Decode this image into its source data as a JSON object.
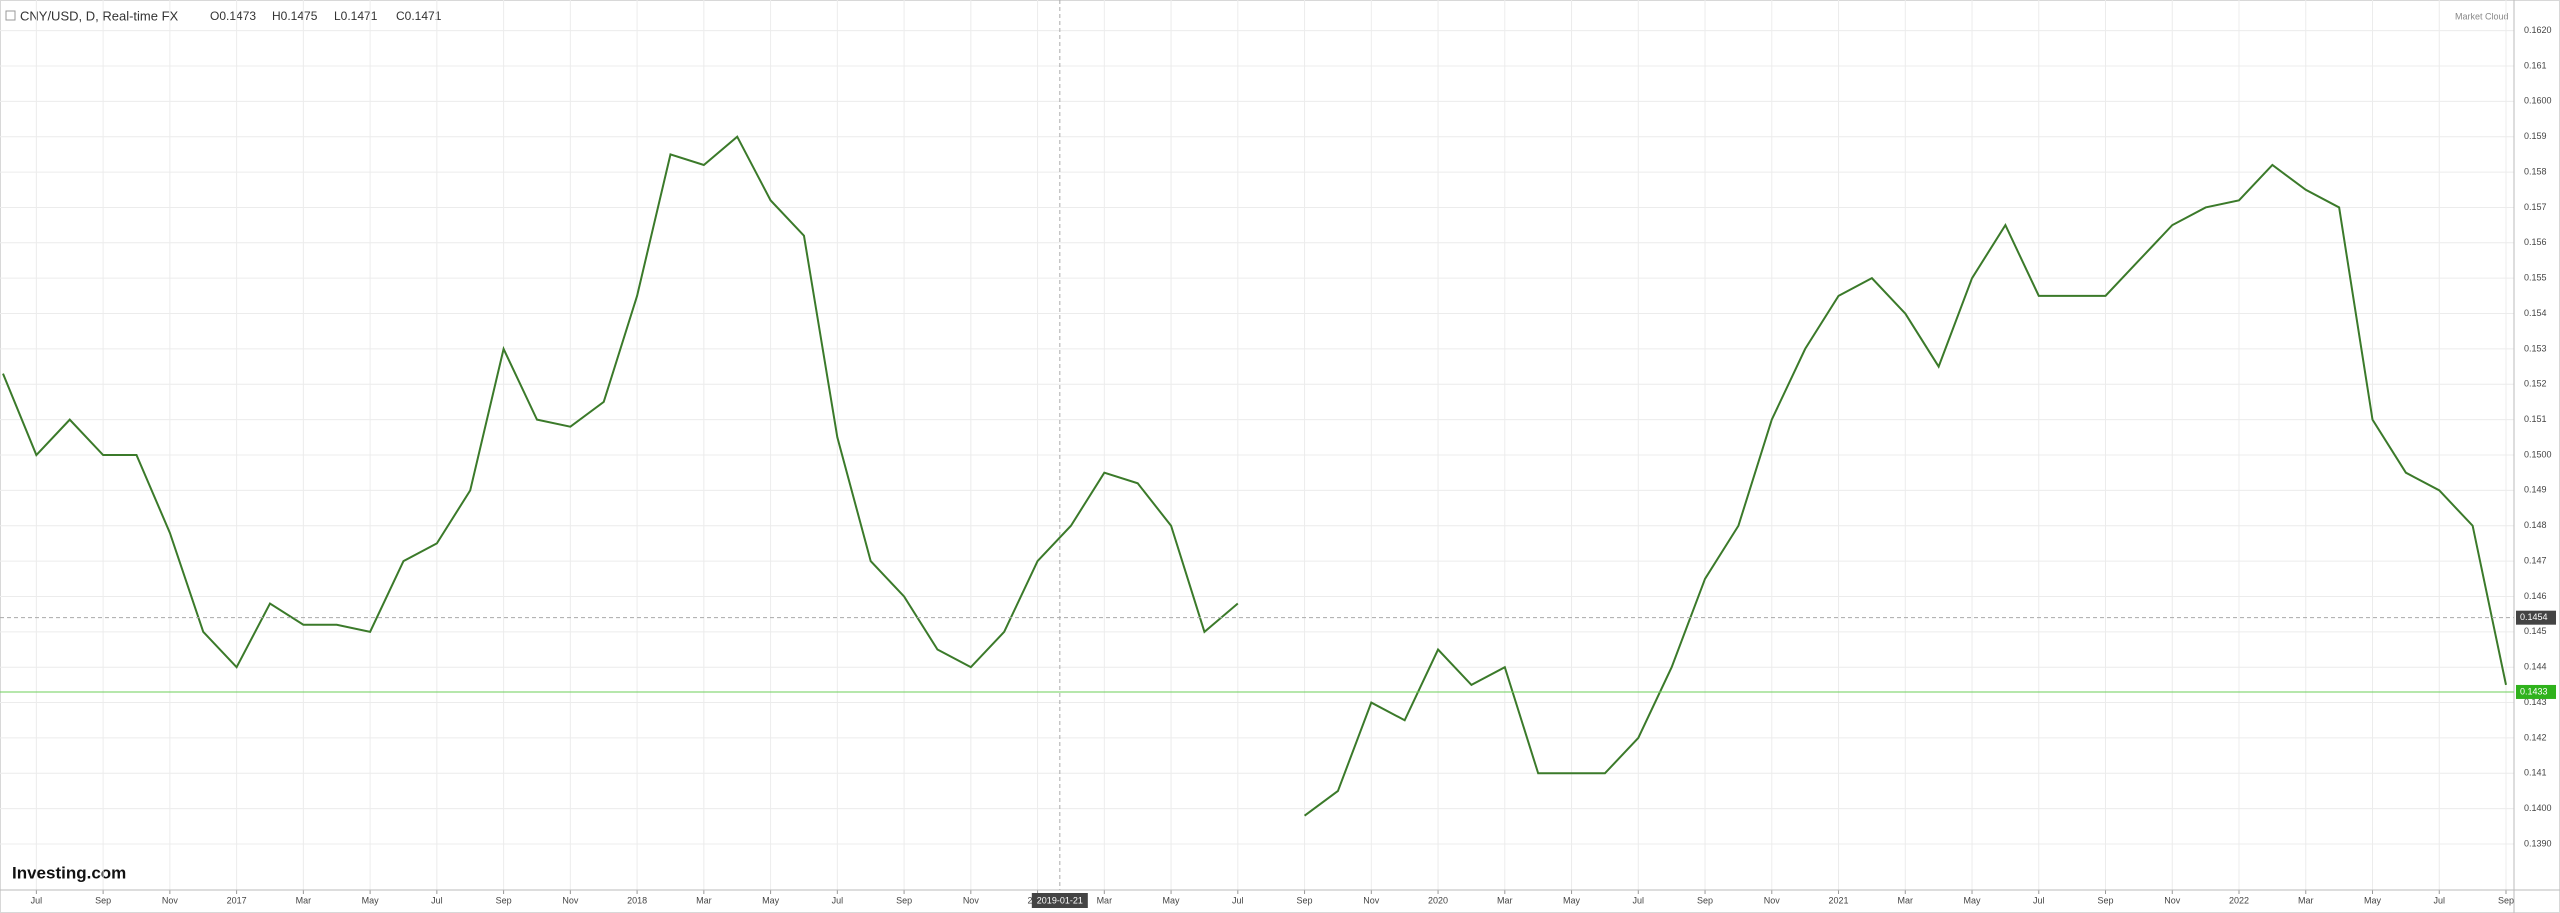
{
  "header": {
    "symbol": "CNY/USD, D, Real-time FX",
    "ohlc": [
      "O0.1473",
      "H0.1475",
      "L0.1471",
      "C0.1471"
    ],
    "source": "Market Cloud"
  },
  "logo": "Investing.com",
  "chart_data": {
    "type": "line",
    "x": [
      "2016-06",
      "2016-07",
      "2016-08",
      "2016-09",
      "2016-10",
      "2016-11",
      "2016-12",
      "2017-01",
      "2017-02",
      "2017-03",
      "2017-04",
      "2017-05",
      "2017-06",
      "2017-07",
      "2017-08",
      "2017-09",
      "2017-10",
      "2017-11",
      "2017-12",
      "2018-01",
      "2018-02",
      "2018-03",
      "2018-04",
      "2018-05",
      "2018-06",
      "2018-07",
      "2018-08",
      "2018-09",
      "2018-10",
      "2018-11",
      "2018-12",
      "2019-01",
      "2019-02",
      "2019-03",
      "2019-04",
      "2019-05",
      "2019-06",
      "2019-07",
      "2019-08",
      "2019-09",
      "2019-10",
      "2019-11",
      "2019-12",
      "2020-01",
      "2020-02",
      "2020-03",
      "2020-04",
      "2020-05",
      "2020-06",
      "2020-07",
      "2020-08",
      "2020-09",
      "2020-10",
      "2020-11",
      "2020-12",
      "2021-01",
      "2021-02",
      "2021-03",
      "2021-04",
      "2021-05",
      "2021-06",
      "2021-07",
      "2021-08",
      "2021-09",
      "2021-10",
      "2021-11",
      "2021-12",
      "2022-01",
      "2022-02",
      "2022-03",
      "2022-04",
      "2022-05",
      "2022-06",
      "2022-07",
      "2022-08",
      "2022-09"
    ],
    "series": [
      {
        "name": "CNY/USD",
        "color": "#3b7a2a",
        "values": [
          0.1523,
          0.15,
          0.151,
          0.15,
          0.15,
          0.1478,
          0.145,
          0.144,
          0.1458,
          0.1452,
          0.1452,
          0.145,
          0.147,
          0.1475,
          0.149,
          0.153,
          0.151,
          0.1508,
          0.1515,
          0.1545,
          0.1585,
          0.1582,
          0.159,
          0.1572,
          0.1562,
          0.1505,
          0.147,
          0.146,
          0.1445,
          0.144,
          0.145,
          0.147,
          0.148,
          0.1495,
          0.1492,
          0.148,
          0.145,
          0.1458,
          null,
          0.1398,
          0.1405,
          0.143,
          0.1425,
          0.1445,
          0.1435,
          0.144,
          0.141,
          0.141,
          0.141,
          0.142,
          0.144,
          0.1465,
          0.148,
          0.151,
          0.153,
          0.1545,
          0.155,
          0.154,
          0.1525,
          0.155,
          0.1565,
          0.1545,
          0.1545,
          0.1545,
          0.1555,
          0.1565,
          0.157,
          0.1572,
          0.1582,
          0.1575,
          0.157,
          0.151,
          0.1495,
          0.149,
          0.148,
          0.1435
        ]
      }
    ],
    "xlim": [
      "2016-06",
      "2022-09"
    ],
    "xticks": [
      {
        "value": "2016-07",
        "label": "Jul"
      },
      {
        "value": "2016-09",
        "label": "Sep"
      },
      {
        "value": "2016-11",
        "label": "Nov"
      },
      {
        "value": "2017-01",
        "label": "2017"
      },
      {
        "value": "2017-03",
        "label": "Mar"
      },
      {
        "value": "2017-05",
        "label": "May"
      },
      {
        "value": "2017-07",
        "label": "Jul"
      },
      {
        "value": "2017-09",
        "label": "Sep"
      },
      {
        "value": "2017-11",
        "label": "Nov"
      },
      {
        "value": "2018-01",
        "label": "2018"
      },
      {
        "value": "2018-03",
        "label": "Mar"
      },
      {
        "value": "2018-05",
        "label": "May"
      },
      {
        "value": "2018-07",
        "label": "Jul"
      },
      {
        "value": "2018-09",
        "label": "Sep"
      },
      {
        "value": "2018-11",
        "label": "Nov"
      },
      {
        "value": "2019-01",
        "label": "2019"
      },
      {
        "value": "2019-03",
        "label": "Mar"
      },
      {
        "value": "2019-05",
        "label": "May"
      },
      {
        "value": "2019-07",
        "label": "Jul"
      },
      {
        "value": "2019-09",
        "label": "Sep"
      },
      {
        "value": "2019-11",
        "label": "Nov"
      },
      {
        "value": "2020-01",
        "label": "2020"
      },
      {
        "value": "2020-03",
        "label": "Mar"
      },
      {
        "value": "2020-05",
        "label": "May"
      },
      {
        "value": "2020-07",
        "label": "Jul"
      },
      {
        "value": "2020-09",
        "label": "Sep"
      },
      {
        "value": "2020-11",
        "label": "Nov"
      },
      {
        "value": "2021-01",
        "label": "2021"
      },
      {
        "value": "2021-03",
        "label": "Mar"
      },
      {
        "value": "2021-05",
        "label": "May"
      },
      {
        "value": "2021-07",
        "label": "Jul"
      },
      {
        "value": "2021-09",
        "label": "Sep"
      },
      {
        "value": "2021-11",
        "label": "Nov"
      },
      {
        "value": "2022-01",
        "label": "2022"
      },
      {
        "value": "2022-03",
        "label": "Mar"
      },
      {
        "value": "2022-05",
        "label": "May"
      },
      {
        "value": "2022-07",
        "label": "Jul"
      },
      {
        "value": "2022-09",
        "label": "Sep"
      }
    ],
    "ylim": [
      0.1377,
      0.1623
    ],
    "yticks": [
      {
        "value": 0.139,
        "label": "0.1390"
      },
      {
        "value": 0.14,
        "label": "0.1400"
      },
      0.141,
      0.142,
      0.143,
      0.144,
      0.145,
      0.146,
      0.147,
      0.148,
      0.149,
      {
        "value": 0.15,
        "label": "0.1500"
      },
      0.151,
      0.152,
      0.153,
      0.154,
      0.155,
      0.156,
      0.157,
      0.158,
      0.159,
      {
        "value": 0.16,
        "label": "0.1600"
      },
      0.161,
      {
        "value": 0.162,
        "label": "0.1620"
      }
    ],
    "grid": true,
    "crosshair_price": 0.1454,
    "crosshair_date": "2019-01-21",
    "last_price": 0.1433
  }
}
